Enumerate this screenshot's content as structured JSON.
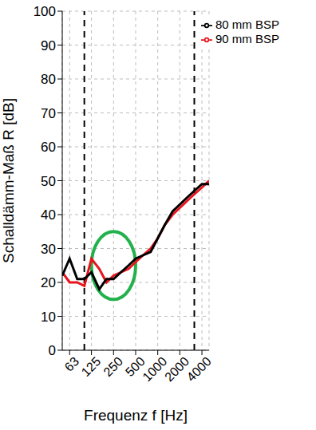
{
  "chart_data": {
    "type": "line",
    "x": [
      50,
      63,
      80,
      100,
      125,
      160,
      200,
      250,
      315,
      400,
      500,
      630,
      800,
      1000,
      1250,
      1600,
      2000,
      2500,
      3150,
      4000,
      5000
    ],
    "series": [
      {
        "name": "90 mm BSP",
        "color": "#e8141c",
        "values": [
          23,
          20,
          20,
          19,
          27,
          24,
          20,
          22,
          23,
          24,
          26,
          28,
          30,
          33,
          37,
          40,
          42,
          44,
          46,
          48,
          50
        ]
      },
      {
        "name": "80 mm BSP",
        "color": "#000000",
        "values": [
          22,
          27,
          21,
          21,
          23,
          18,
          21,
          21,
          23,
          25,
          27,
          28,
          29,
          33,
          37,
          41,
          43,
          45,
          47,
          49,
          49
        ]
      }
    ],
    "x_label": "Frequenz f [Hz]",
    "y_label": "Schalldämm-Maß R [dB]",
    "xlim": [
      50,
      5000
    ],
    "xticks": [
      63,
      125,
      250,
      500,
      1000,
      2000,
      4000
    ],
    "ylim": [
      0,
      100
    ],
    "yticks": [
      0,
      10,
      20,
      30,
      40,
      50,
      60,
      70,
      80,
      90,
      100
    ],
    "log": "x",
    "grid": true,
    "legend": "upper right",
    "vlines": [
      100,
      3150
    ],
    "highlight": {
      "x": [
        125,
        500
      ],
      "y": [
        15,
        35
      ],
      "color": "#22b14c"
    }
  }
}
